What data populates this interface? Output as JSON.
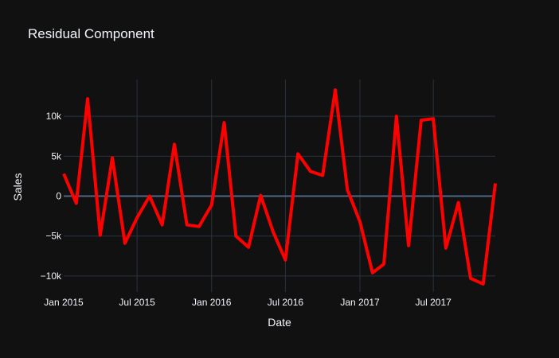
{
  "chart_data": {
    "type": "line",
    "title": "Residual Component",
    "xlabel": "Date",
    "ylabel": "Sales",
    "x": [
      "2015-01",
      "2015-02",
      "2015-03",
      "2015-04",
      "2015-05",
      "2015-06",
      "2015-07",
      "2015-08",
      "2015-09",
      "2015-10",
      "2015-11",
      "2015-12",
      "2016-01",
      "2016-02",
      "2016-03",
      "2016-04",
      "2016-05",
      "2016-06",
      "2016-07",
      "2016-08",
      "2016-09",
      "2016-10",
      "2016-11",
      "2016-12",
      "2017-01",
      "2017-02",
      "2017-03",
      "2017-04",
      "2017-05",
      "2017-06",
      "2017-07",
      "2017-08",
      "2017-09",
      "2017-10",
      "2017-11",
      "2017-12"
    ],
    "series": [
      {
        "color": "#ff0000",
        "values": [
          2800,
          -900,
          12200,
          -4900,
          4800,
          -5900,
          -2700,
          0,
          -3600,
          6500,
          -3600,
          -3800,
          -1100,
          9200,
          -5000,
          -6400,
          100,
          -4500,
          -8000,
          5300,
          3100,
          2600,
          13300,
          800,
          -3200,
          -9600,
          -8500,
          10000,
          -6200,
          9500,
          9700,
          -6500,
          -800,
          -10300,
          -11000,
          1600
        ]
      }
    ],
    "xlim": [
      "2015-01-01",
      "2017-12-01"
    ],
    "ylim": [
      -12000,
      14600
    ],
    "x_ticks": [
      "Jan 2015",
      "Jul 2015",
      "Jan 2016",
      "Jul 2016",
      "Jan 2017",
      "Jul 2017"
    ],
    "x_tick_dates": [
      "2015-01-01",
      "2015-07-01",
      "2016-01-01",
      "2016-07-01",
      "2017-01-01",
      "2017-07-01"
    ],
    "y_ticks": [
      "10k",
      "5k",
      "0",
      "−5k",
      "−10k"
    ],
    "y_tick_values": [
      10000,
      5000,
      0,
      -5000,
      -10000
    ],
    "grid": true,
    "legend": false
  }
}
